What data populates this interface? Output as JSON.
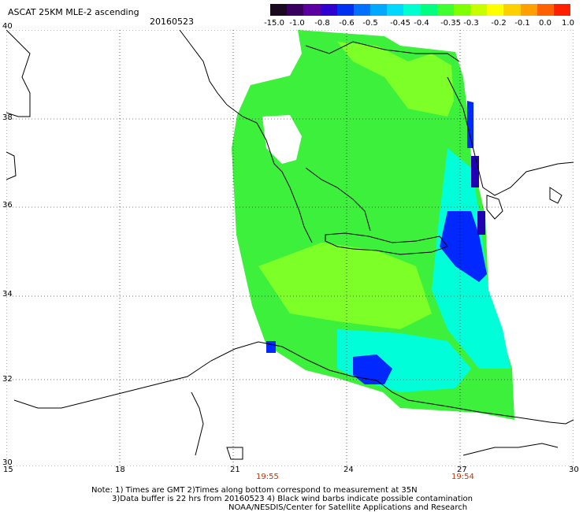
{
  "header": {
    "product_title": "ASCAT 25KM MLE-2 ascending",
    "date": "20160523"
  },
  "colorbar": {
    "tick_labels": [
      "-15.0",
      "-1.0",
      "-0.8",
      "-0.6",
      "-0.5",
      "-0.45",
      "-0.4",
      "-0.35",
      "-0.3",
      "-0.2",
      "-0.1",
      "0.0",
      "1.0"
    ],
    "colors": [
      "#1a0a1f",
      "#3a0060",
      "#5a00a0",
      "#3000d0",
      "#0030f0",
      "#0070ff",
      "#00a8ff",
      "#00d8ff",
      "#00ffd0",
      "#00ff80",
      "#40ff30",
      "#80ff00",
      "#c8ff00",
      "#ffff00",
      "#ffd000",
      "#ffa000",
      "#ff6000",
      "#ff2000"
    ]
  },
  "map": {
    "lat_labels": [
      "40",
      "38",
      "36",
      "34",
      "32",
      "30"
    ],
    "lon_labels": [
      "15",
      "18",
      "21",
      "24",
      "27",
      "30"
    ],
    "swath_colors": {
      "green": "#3cf03c",
      "lightgreen": "#7dff28",
      "cyan": "#00ffd8",
      "blue": "#0028ff",
      "darkblue": "#2000b0"
    },
    "time_labels": [
      "19:55",
      "19:54"
    ],
    "time_color": "#c83000"
  },
  "notes": {
    "line1": "Note: 1) Times are GMT 2)Times along bottom correspond to measurement at 35N",
    "line2": "3)Data buffer is 22 hrs from 20160523 4) Black wind barbs indicate possible contamination",
    "line3": "NOAA/NESDIS/Center for Satellite Applications and Research"
  }
}
